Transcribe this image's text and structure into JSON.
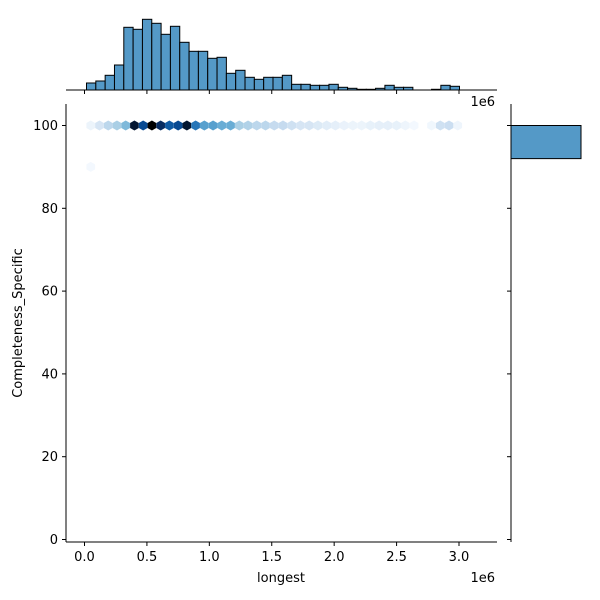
{
  "chart_data": {
    "type": "jointplot",
    "kind": "hex",
    "xlabel": "longest",
    "ylabel": "Completeness_Specific",
    "x_offset_label": "1e6",
    "marginal_x_offset_label": "1e6",
    "xlim": [
      -0.14,
      3.31
    ],
    "ylim": [
      -1,
      105
    ],
    "x_ticks": [
      0.0,
      0.5,
      1.0,
      1.5,
      2.0,
      2.5,
      3.0
    ],
    "x_tick_labels": [
      "0.0",
      "0.5",
      "1.0",
      "1.5",
      "2.0",
      "2.5",
      "3.0"
    ],
    "y_ticks": [
      0,
      20,
      40,
      60,
      80,
      100
    ],
    "y_tick_labels": [
      "0",
      "20",
      "40",
      "60",
      "80",
      "100"
    ],
    "grid": false,
    "bar_color": "#5499c7",
    "hex_cmap": "Blues",
    "marginal_x_histogram": {
      "bin_start": 0.016,
      "bin_width": 0.0747,
      "counts": [
        7,
        9,
        14.7,
        25,
        62.7,
        60.7,
        70.7,
        66.7,
        55.7,
        63.7,
        47.7,
        38.7,
        38.7,
        31.7,
        32.7,
        16.7,
        19.7,
        12.7,
        10.7,
        12.7,
        12.7,
        14.7,
        5.7,
        5.7,
        4.7,
        4.7,
        5.7,
        2.7,
        1.7,
        0.7,
        0.7,
        1.7,
        4.7,
        2.7,
        2.7,
        0,
        0,
        0.7,
        4.7,
        3.7
      ]
    },
    "marginal_y_histogram": {
      "bins": [
        {
          "y_from": 92,
          "y_to": 100,
          "relative_count": 1.0
        }
      ]
    },
    "hexbin_row_y100": {
      "y": 100,
      "x_centers_1e6": [
        0.05,
        0.12,
        0.19,
        0.26,
        0.33,
        0.4,
        0.47,
        0.54,
        0.61,
        0.68,
        0.75,
        0.82,
        0.89,
        0.96,
        1.03,
        1.1,
        1.17,
        1.24,
        1.31,
        1.38,
        1.45,
        1.52,
        1.59,
        1.66,
        1.73,
        1.8,
        1.87,
        1.94,
        2.01,
        2.08,
        2.15,
        2.22,
        2.29,
        2.36,
        2.43,
        2.5,
        2.57,
        2.64,
        2.71,
        2.78,
        2.85,
        2.92,
        2.99
      ],
      "intensity": [
        0.05,
        0.15,
        0.25,
        0.3,
        0.4,
        0.95,
        0.8,
        1.0,
        0.9,
        0.75,
        0.8,
        0.95,
        0.65,
        0.5,
        0.5,
        0.45,
        0.45,
        0.3,
        0.28,
        0.25,
        0.25,
        0.22,
        0.22,
        0.18,
        0.15,
        0.15,
        0.12,
        0.1,
        0.08,
        0.06,
        0.05,
        0.05,
        0.07,
        0.08,
        0.08,
        0.07,
        0.04,
        0.02,
        0.0,
        0.03,
        0.18,
        0.2,
        0.04
      ]
    },
    "hexbin_row_y90": {
      "y": 90,
      "x_centers_1e6": [
        0.05
      ],
      "intensity": [
        0.02
      ]
    }
  }
}
